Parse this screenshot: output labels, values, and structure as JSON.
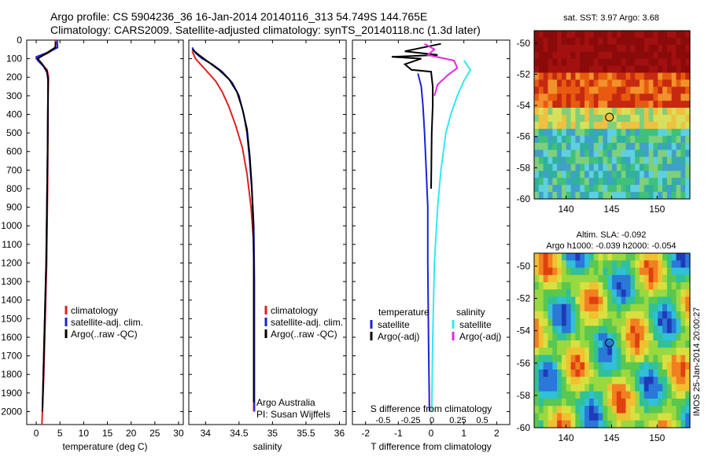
{
  "header": {
    "title_line1": "Argo profile: CS 5904236_36 16-Jan-2014 20140116_313 54.749S 144.765E",
    "title_line2": "Climatology: CARS2009. Satellite-adjusted climatology: synTS_20140118.nc (1.3d later)"
  },
  "colors": {
    "climatology": "#e02020",
    "satellite": "#1a22d8",
    "argo": "#000000",
    "satellite_salinity": "#33e8f0",
    "argo_salinity_adj": "#e028e0"
  },
  "chart_data": [
    {
      "type": "line",
      "xlabel": "temperature (deg C)",
      "ylabel": "",
      "xlim": [
        -2,
        31
      ],
      "ylim": [
        2070,
        0
      ],
      "x_ticks": [
        "0",
        "5",
        "10",
        "15",
        "20",
        "25",
        "30"
      ],
      "y_ticks": [
        "0",
        "100",
        "200",
        "300",
        "400",
        "500",
        "600",
        "700",
        "800",
        "900",
        "1000",
        "1100",
        "1200",
        "1300",
        "1400",
        "1500",
        "1600",
        "1700",
        "1800",
        "1900",
        "2000"
      ],
      "legend": [
        "climatology",
        "satellite-adj. clim.",
        "Argo(..raw -QC)"
      ],
      "series": [
        {
          "name": "climatology",
          "color": "#e02020",
          "points": [
            [
              4,
              0
            ],
            [
              4.1,
              40
            ],
            [
              2.5,
              70
            ],
            [
              0,
              100
            ],
            [
              1.2,
              130
            ],
            [
              2.3,
              160
            ],
            [
              2.6,
              200
            ],
            [
              2.5,
              300
            ],
            [
              2.5,
              400
            ],
            [
              2.45,
              600
            ],
            [
              2.4,
              800
            ],
            [
              2.3,
              1000
            ],
            [
              2.2,
              1200
            ],
            [
              2.0,
              1400
            ],
            [
              1.8,
              1600
            ],
            [
              1.6,
              1800
            ],
            [
              1.3,
              2000
            ],
            [
              1.2,
              2070
            ]
          ]
        },
        {
          "name": "satellite-adj. clim.",
          "color": "#1a22d8",
          "points": [
            [
              4.4,
              0
            ],
            [
              4.5,
              40
            ],
            [
              3,
              60
            ],
            [
              0,
              90
            ],
            [
              0.3,
              110
            ],
            [
              1.5,
              140
            ],
            [
              2.2,
              170
            ],
            [
              2.5,
              200
            ],
            [
              2.5,
              300
            ],
            [
              2.45,
              400
            ],
            [
              2.4,
              600
            ],
            [
              2.3,
              800
            ],
            [
              2.2,
              1000
            ],
            [
              2.1,
              1200
            ],
            [
              1.9,
              1400
            ],
            [
              1.7,
              1600
            ],
            [
              1.5,
              1800
            ],
            [
              1.3,
              2000
            ]
          ]
        },
        {
          "name": "Argo(..raw -QC)",
          "color": "#000000",
          "points": [
            [
              4.1,
              10
            ],
            [
              4.0,
              40
            ],
            [
              2.2,
              70
            ],
            [
              0.3,
              100
            ],
            [
              1.3,
              130
            ],
            [
              2.3,
              170
            ],
            [
              2.5,
              220
            ],
            [
              2.45,
              400
            ],
            [
              2.4,
              600
            ],
            [
              2.3,
              800
            ],
            [
              2.2,
              1000
            ],
            [
              2.1,
              1200
            ],
            [
              1.9,
              1400
            ],
            [
              1.7,
              1600
            ],
            [
              1.5,
              1800
            ],
            [
              1.3,
              2000
            ]
          ]
        }
      ]
    },
    {
      "type": "line",
      "xlabel": "salinity",
      "ylabel": "",
      "xlim": [
        33.75,
        36.1
      ],
      "ylim": [
        2070,
        0
      ],
      "x_ticks": [
        "34",
        "34.5",
        "35",
        "35.5",
        "36"
      ],
      "legend": [
        "climatology",
        "satellite-adj. clim.",
        "Argo(..raw -QC)"
      ],
      "annotation": [
        "Argo Australia",
        "PI: Susan Wijffels"
      ],
      "series": [
        {
          "name": "climatology",
          "color": "#e02020",
          "points": [
            [
              33.8,
              60
            ],
            [
              33.85,
              100
            ],
            [
              33.95,
              140
            ],
            [
              34.05,
              180
            ],
            [
              34.15,
              220
            ],
            [
              34.25,
              280
            ],
            [
              34.35,
              360
            ],
            [
              34.45,
              460
            ],
            [
              34.55,
              580
            ],
            [
              34.62,
              720
            ],
            [
              34.68,
              900
            ],
            [
              34.72,
              1100
            ],
            [
              34.72,
              1500
            ],
            [
              34.72,
              2000
            ]
          ]
        },
        {
          "name": "satellite-adj. clim.",
          "color": "#1a22d8",
          "points": [
            [
              33.8,
              40
            ],
            [
              33.85,
              70
            ],
            [
              33.95,
              100
            ],
            [
              34.1,
              130
            ],
            [
              34.25,
              170
            ],
            [
              34.4,
              230
            ],
            [
              34.5,
              300
            ],
            [
              34.57,
              400
            ],
            [
              34.62,
              500
            ],
            [
              34.66,
              650
            ],
            [
              34.69,
              800
            ],
            [
              34.72,
              1000
            ],
            [
              34.73,
              1300
            ],
            [
              34.73,
              1700
            ],
            [
              34.73,
              2000
            ]
          ]
        },
        {
          "name": "Argo(..raw -QC)",
          "color": "#000000",
          "points": [
            [
              33.8,
              50
            ],
            [
              33.9,
              80
            ],
            [
              34.05,
              120
            ],
            [
              34.2,
              160
            ],
            [
              34.35,
              210
            ],
            [
              34.47,
              280
            ],
            [
              34.55,
              370
            ],
            [
              34.62,
              480
            ],
            [
              34.66,
              620
            ],
            [
              34.69,
              780
            ],
            [
              34.71,
              950
            ],
            [
              34.72,
              1200
            ],
            [
              34.72,
              1600
            ],
            [
              34.72,
              1950
            ]
          ]
        }
      ]
    },
    {
      "type": "line",
      "xlabel": "T difference from climatology",
      "title": "S difference from climatology",
      "xlim": [
        -2.4,
        2.4
      ],
      "ylim": [
        2070,
        0
      ],
      "x_ticks": [
        "-2",
        "-1",
        "0",
        "1",
        "2"
      ],
      "top_ticks": [
        "-0.5",
        "-0.25",
        "0",
        "0.25",
        "0.5"
      ],
      "legend_temperature_header": "temperature",
      "legend_salinity_header": "salinity",
      "legend": [
        "satellite",
        "Argo(-adj)",
        "satellite",
        "Argo(-adj)"
      ],
      "series": [
        {
          "name": "satellite",
          "color": "#1a22d8",
          "points": [
            [
              -0.4,
              180
            ],
            [
              -0.3,
              250
            ],
            [
              -0.25,
              350
            ],
            [
              -0.2,
              500
            ],
            [
              -0.15,
              700
            ],
            [
              -0.1,
              900
            ],
            [
              -0.1,
              1200
            ],
            [
              -0.08,
              1600
            ],
            [
              -0.05,
              2000
            ]
          ]
        },
        {
          "name": "Argo(-adj)",
          "color": "#000000",
          "points": [
            [
              0.3,
              20
            ],
            [
              -0.8,
              60
            ],
            [
              0.2,
              80
            ],
            [
              -1.2,
              90
            ],
            [
              -0.3,
              100
            ],
            [
              -0.8,
              130
            ],
            [
              -0.6,
              160
            ],
            [
              0.0,
              170
            ],
            [
              0.05,
              250
            ],
            [
              0.05,
              350
            ],
            [
              0.02,
              500
            ],
            [
              0.0,
              800
            ]
          ]
        },
        {
          "name": "satellite",
          "color": "#33e8f0",
          "points": [
            [
              1.0,
              110
            ],
            [
              1.2,
              160
            ],
            [
              1.0,
              220
            ],
            [
              0.8,
              300
            ],
            [
              0.6,
              400
            ],
            [
              0.45,
              500
            ],
            [
              0.3,
              700
            ],
            [
              0.2,
              900
            ],
            [
              0.1,
              1200
            ],
            [
              0.05,
              1600
            ],
            [
              0.02,
              2000
            ]
          ]
        },
        {
          "name": "Argo(-adj)",
          "color": "#e028e0",
          "points": [
            [
              -0.2,
              20
            ],
            [
              0.1,
              50
            ],
            [
              -0.1,
              80
            ],
            [
              0.7,
              110
            ],
            [
              0.8,
              150
            ],
            [
              0.5,
              190
            ],
            [
              0.2,
              240
            ],
            [
              0.1,
              300
            ]
          ]
        }
      ]
    }
  ],
  "maps": {
    "sst": {
      "title": "sat. SST: 3.97 Argo: 3.68",
      "x_ticks": [
        "140",
        "145",
        "150"
      ],
      "y_ticks": [
        "-50",
        "-52",
        "-54",
        "-56",
        "-58",
        "-60"
      ]
    },
    "sla": {
      "title_line1": "Altim. SLA: -0.092",
      "title_line2": "Argo h1000: -0.039 h2000: -0.054",
      "x_ticks": [
        "140",
        "145",
        "150"
      ],
      "y_ticks": [
        "-50",
        "-52",
        "-54",
        "-56",
        "-58",
        "-60"
      ],
      "credit": "IMOS 25-Jan-2014 20:00:27"
    }
  }
}
